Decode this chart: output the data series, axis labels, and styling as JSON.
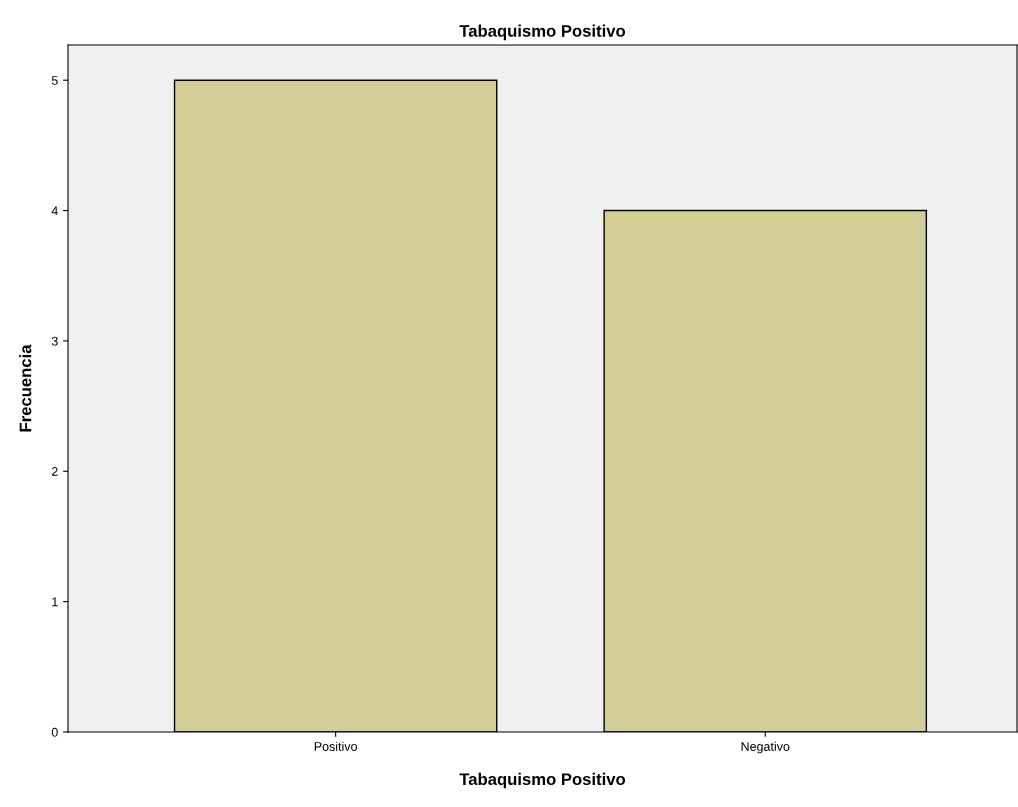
{
  "chart_data": {
    "type": "bar",
    "title": "Tabaquismo Positivo",
    "xlabel": "Tabaquismo Positivo",
    "ylabel": "Frecuencia",
    "categories": [
      "Positivo",
      "Negativo"
    ],
    "values": [
      5,
      4
    ],
    "color": "#d3ce97",
    "ylim": [
      0,
      5.27
    ],
    "yticks": [
      0,
      1,
      2,
      3,
      4,
      5
    ],
    "grid": false,
    "legend": false
  }
}
